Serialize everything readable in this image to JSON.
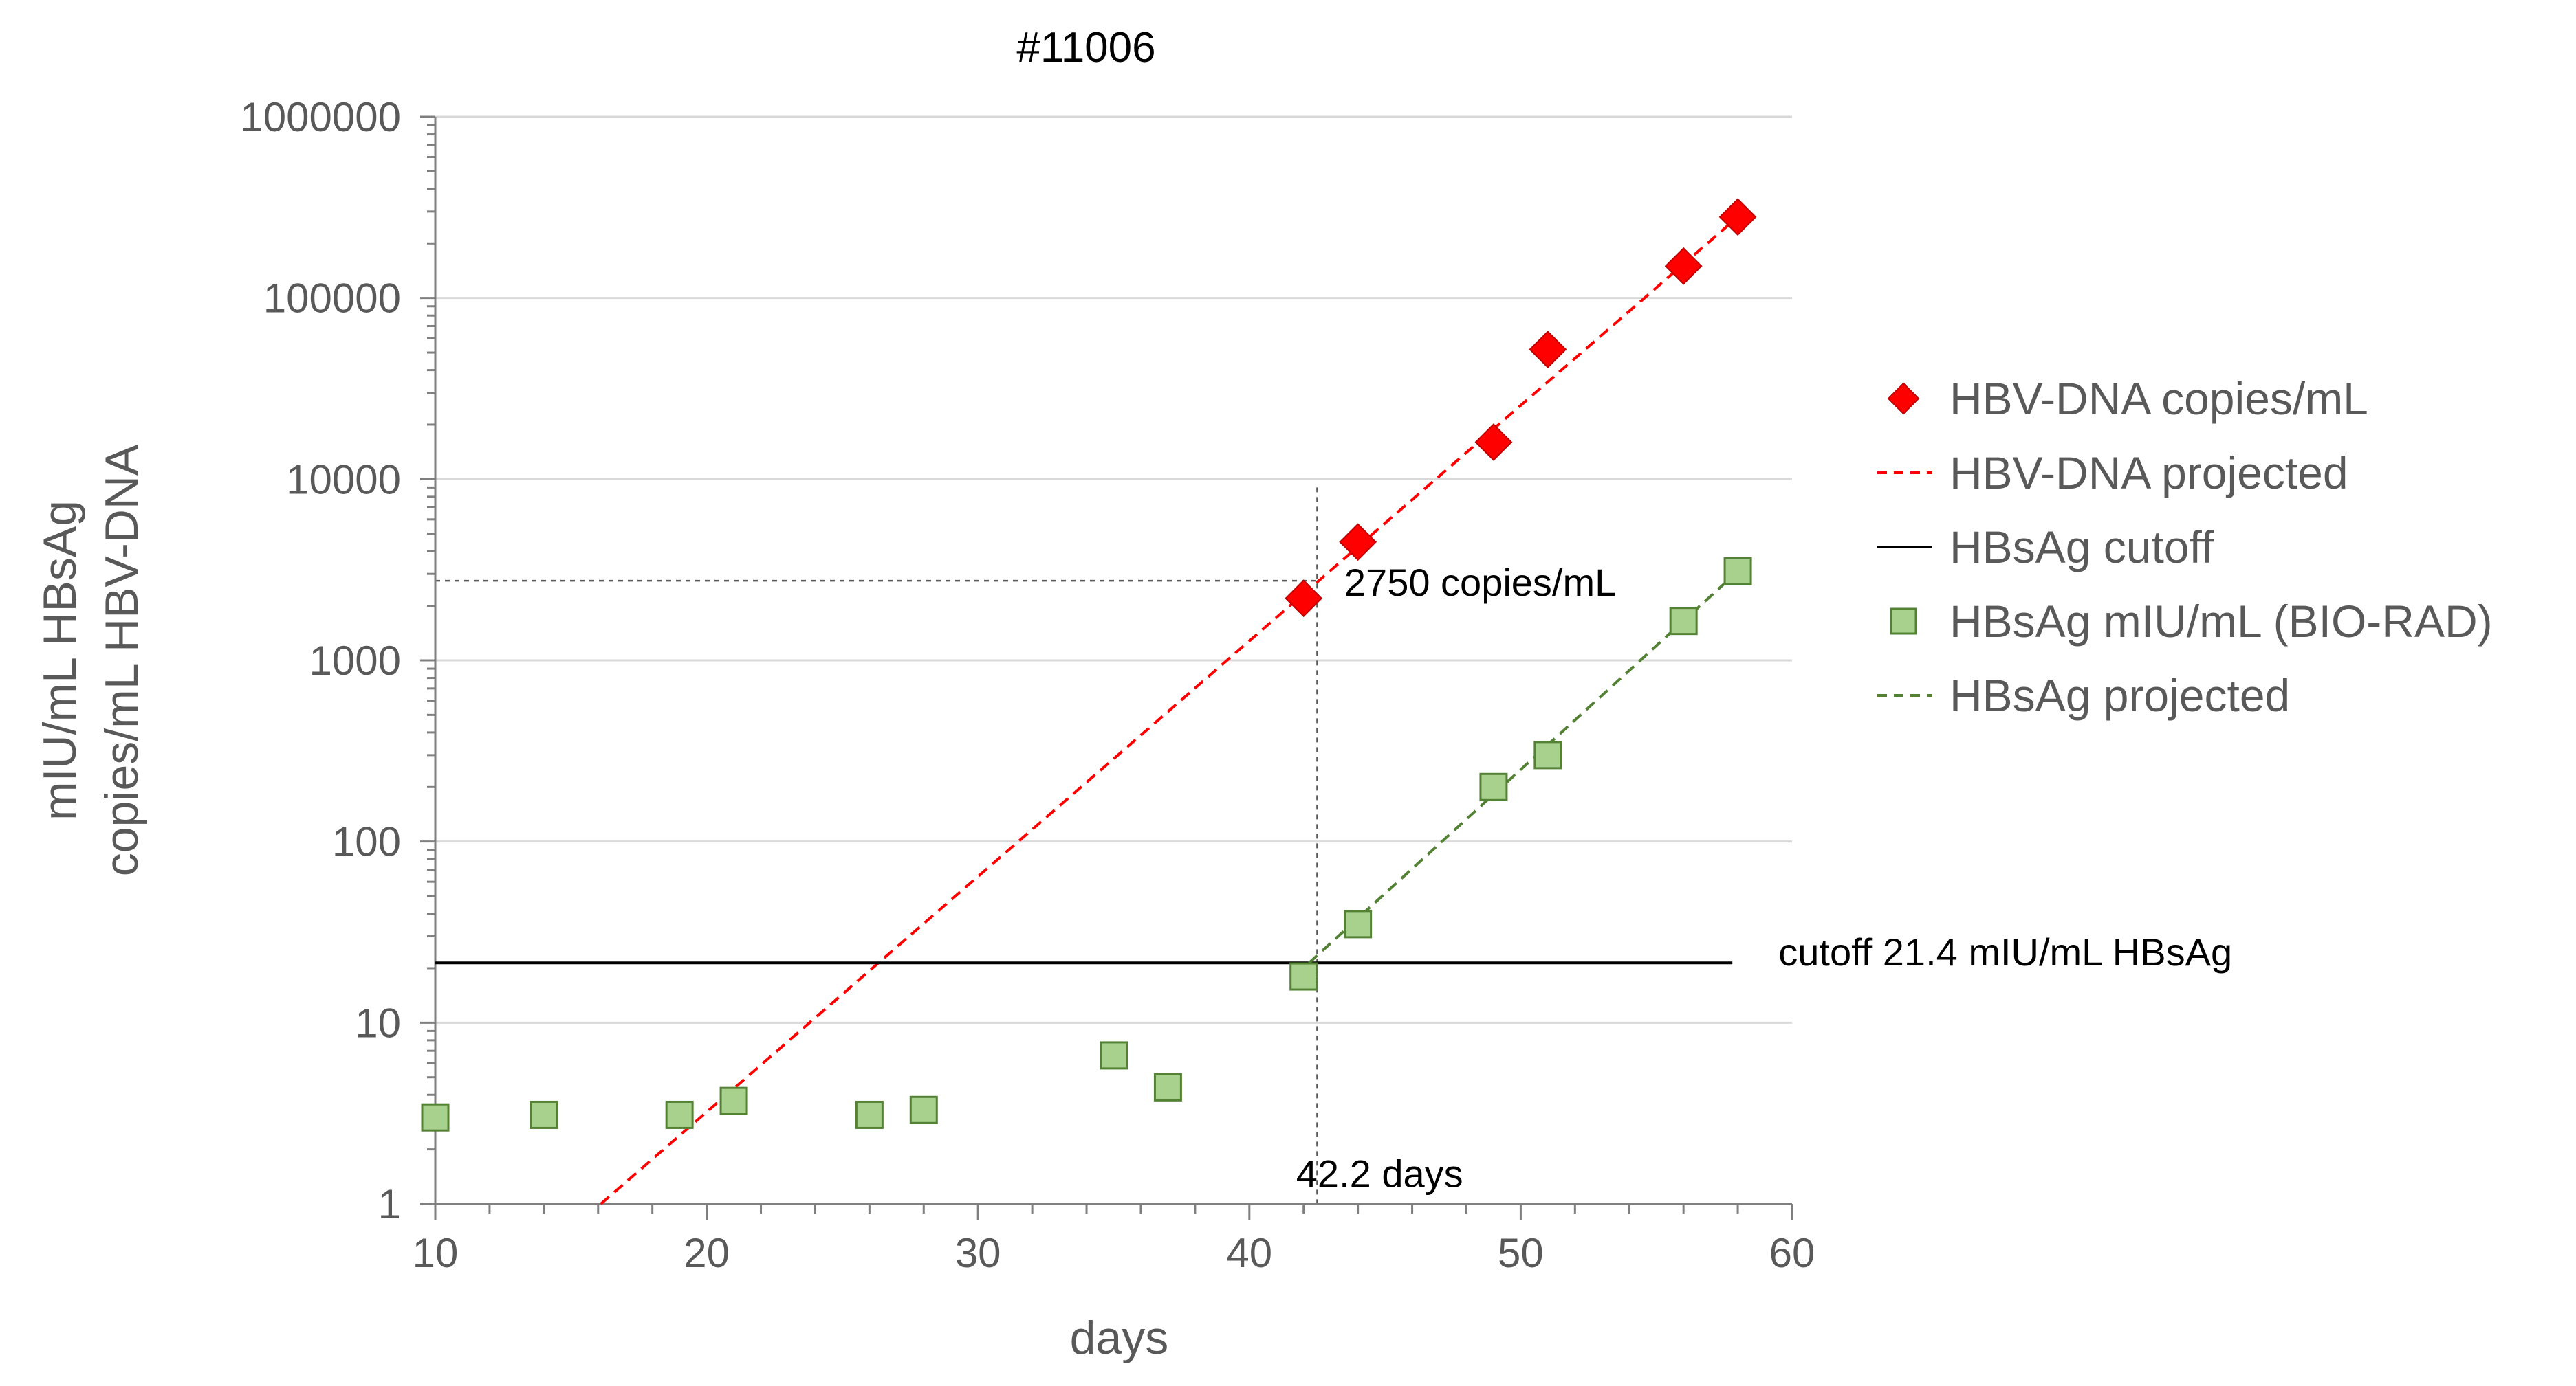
{
  "chart_data": {
    "type": "scatter",
    "title": "#11006",
    "xlabel": "days",
    "ylabel_line1": "mIU/mL HBsAg",
    "ylabel_line2": "copies/mL  HBV-DNA",
    "xlim": [
      10,
      60
    ],
    "ylim": [
      1,
      1000000
    ],
    "yscale": "log",
    "x_ticks": [
      10,
      20,
      30,
      40,
      50,
      60
    ],
    "x_tick_labels": [
      "10",
      "20",
      "30",
      "40",
      "50",
      "60"
    ],
    "y_ticks": [
      1,
      10,
      100,
      1000,
      10000,
      100000,
      1000000
    ],
    "y_tick_labels": [
      "1",
      "10",
      "100",
      "1000",
      "10000",
      "100000",
      "1000000"
    ],
    "grid": "horizontal",
    "legend_position": "right",
    "series": [
      {
        "name": "HBV-DNA copies/mL",
        "kind": "scatter",
        "marker": "diamond",
        "color": "#ff0000",
        "x": [
          42,
          44,
          49,
          51,
          56,
          58
        ],
        "y": [
          2200,
          4500,
          16000,
          52000,
          150000,
          280000
        ]
      },
      {
        "name": "HBV-DNA projected",
        "kind": "line",
        "style": "dashed",
        "color": "#ff0000",
        "x": [
          16.1,
          58
        ],
        "y": [
          1,
          280000
        ]
      },
      {
        "name": "HBsAg cutoff",
        "kind": "line",
        "style": "solid",
        "color": "#000000",
        "x": [
          10,
          57.8
        ],
        "y": [
          21.4,
          21.4
        ]
      },
      {
        "name": "HBsAg mIU/mL  (BIO-RAD)",
        "kind": "scatter",
        "marker": "square",
        "color": "#a9d18e",
        "x": [
          10,
          14,
          19,
          21,
          26,
          28,
          35,
          37,
          42,
          44,
          49,
          51,
          56,
          58
        ],
        "y": [
          3.0,
          3.1,
          3.1,
          3.7,
          3.1,
          3.3,
          6.6,
          4.4,
          18,
          35,
          200,
          300,
          1650,
          3100
        ]
      },
      {
        "name": "HBsAg projected",
        "kind": "line",
        "style": "dashed",
        "color": "#548235",
        "x": [
          42.2,
          58
        ],
        "y": [
          21.4,
          3100
        ]
      }
    ],
    "reference_lines": {
      "vertical": {
        "x": 42.5,
        "y_from": 1,
        "y_to": 9000
      },
      "horizontal": {
        "y": 2750,
        "x_from": 10,
        "x_to": 42.5
      }
    },
    "annotations": [
      {
        "text": "2750 copies/mL",
        "x": 43.5,
        "y": 2750
      },
      {
        "text": "42.2 days",
        "x": 44.8,
        "y": 1.5
      },
      {
        "text": "cutoff 21.4 mIU/mL HBsAg",
        "x": 59.5,
        "y": 21.4
      }
    ]
  }
}
